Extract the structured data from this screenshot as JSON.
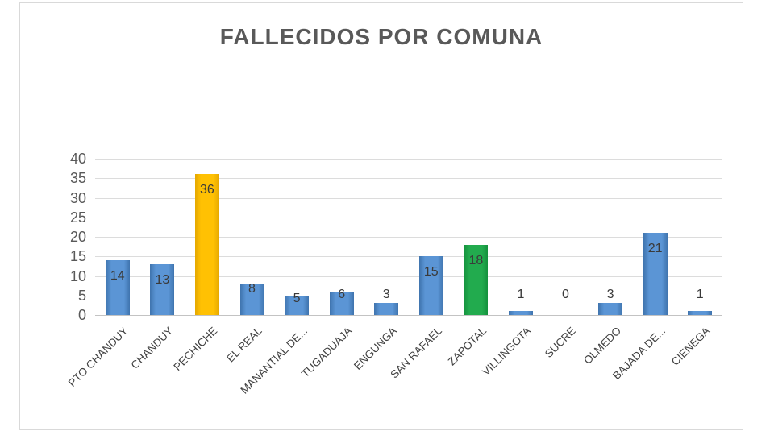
{
  "chart_data": {
    "type": "bar",
    "title": "FALLECIDOS POR COMUNA",
    "categories": [
      "PTO CHANDUY",
      "CHANDUY",
      "PECHICHE",
      "EL REAL",
      "MANANTIAL DE...",
      "TUGADUAJA",
      "ENGUNGA",
      "SAN RAFAEL",
      "ZAPOTAL",
      "VILLINGOTA",
      "SUCRE",
      "OLMEDO",
      "BAJADA DE...",
      "CIENEGA"
    ],
    "values": [
      14,
      13,
      36,
      8,
      5,
      6,
      3,
      15,
      18,
      1,
      0,
      3,
      21,
      1
    ],
    "bar_color_names": [
      "blue",
      "blue",
      "orange",
      "blue",
      "blue",
      "blue",
      "blue",
      "blue",
      "green",
      "blue",
      "blue",
      "blue",
      "blue",
      "blue"
    ],
    "colors": {
      "blue": "#4d87c6",
      "orange": "#ffc000",
      "green": "#1ea64a"
    },
    "data_labels": [
      14,
      13,
      36,
      8,
      5,
      6,
      3,
      15,
      18,
      1,
      0,
      3,
      21,
      1
    ],
    "xlabel": "",
    "ylabel": "",
    "ylim": [
      0,
      40
    ],
    "y_ticks": [
      0,
      5,
      10,
      15,
      20,
      25,
      30,
      35,
      40
    ],
    "grid": true,
    "legend": false,
    "title_color": "#595959",
    "gridline_color": "#dcdcdc",
    "label_color": "#3a3a3a"
  }
}
